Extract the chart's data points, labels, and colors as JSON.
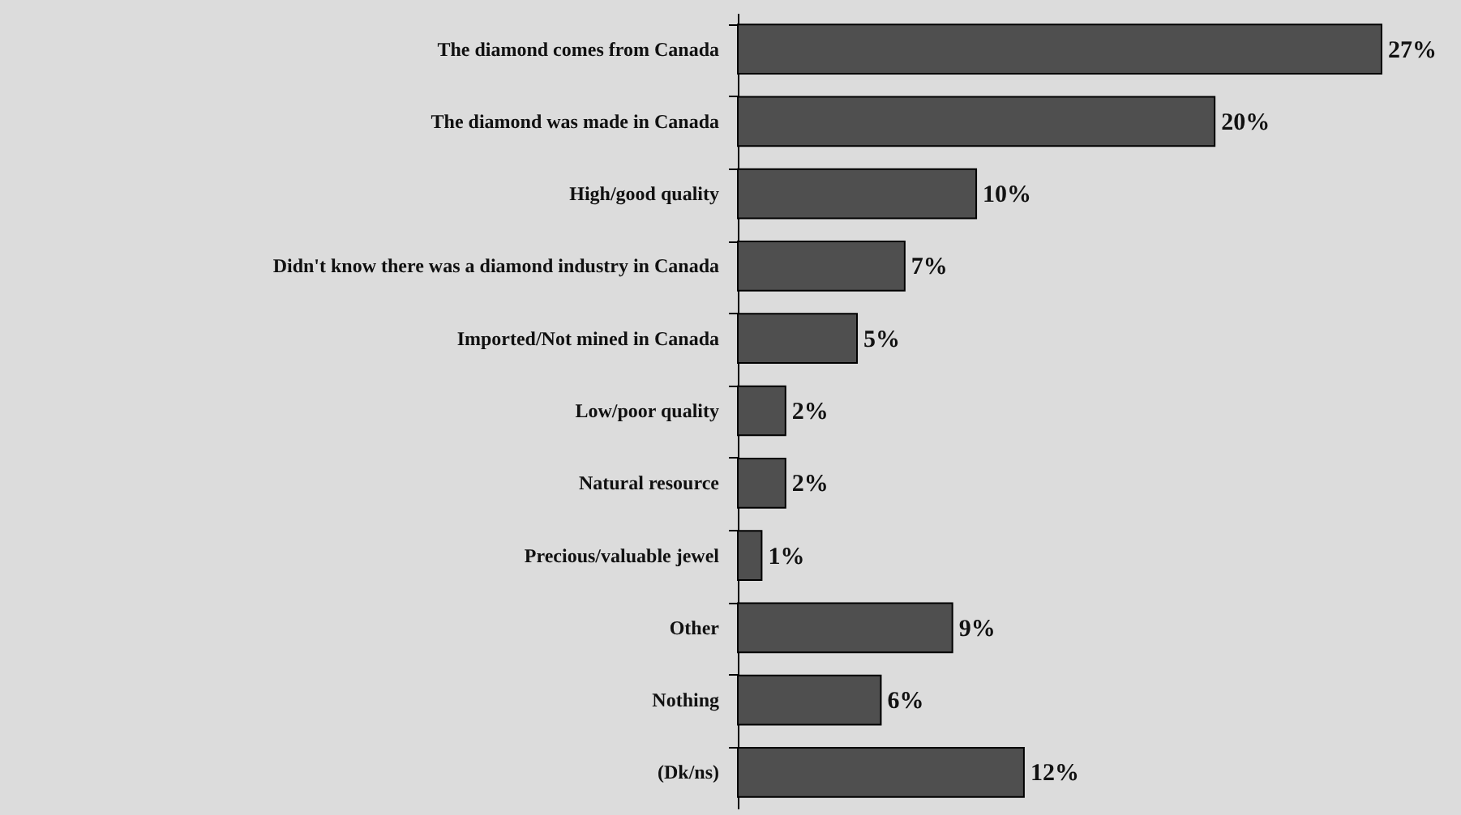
{
  "chart_data": {
    "type": "bar",
    "orientation": "horizontal",
    "categories": [
      "The diamond comes from Canada",
      "The diamond was made in Canada",
      "High/good quality",
      "Didn't know there was a diamond industry in Canada",
      "Imported/Not mined in Canada",
      "Low/poor quality",
      "Natural resource",
      "Precious/valuable jewel",
      "Other",
      "Nothing",
      "(Dk/ns)"
    ],
    "values": [
      27,
      20,
      10,
      7,
      5,
      2,
      2,
      1,
      9,
      6,
      12
    ],
    "value_labels": [
      "27%",
      "20%",
      "10%",
      "7%",
      "5%",
      "2%",
      "2%",
      "1%",
      "9%",
      "6%",
      "12%"
    ],
    "color": "#4f4f4f"
  }
}
